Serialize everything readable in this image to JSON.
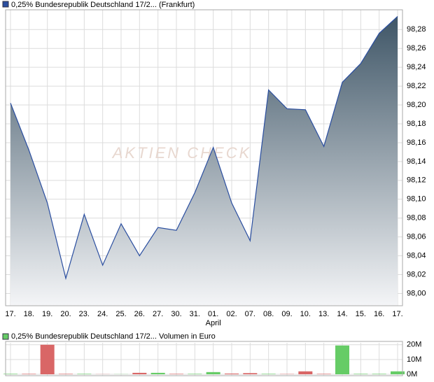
{
  "chart_data": [
    {
      "type": "area",
      "watermark": "AKTIEN CHECK",
      "month_label": "April",
      "categories": [
        "17.",
        "18.",
        "19.",
        "20.",
        "23.",
        "24.",
        "25.",
        "26.",
        "27.",
        "30.",
        "31.",
        "01.",
        "02.",
        "07.",
        "08.",
        "09.",
        "10.",
        "13.",
        "14.",
        "15.",
        "16.",
        "17."
      ],
      "series": [
        {
          "name": "0,25% Bundesrepublik Deutschland 17/2... (Frankfurt)",
          "color": "#2a4ea0",
          "values": [
            98.202,
            98.152,
            98.096,
            98.016,
            98.084,
            98.03,
            98.074,
            98.04,
            98.07,
            98.067,
            98.107,
            98.155,
            98.096,
            98.056,
            98.216,
            98.196,
            98.195,
            98.156,
            98.224,
            98.244,
            98.276,
            98.294
          ]
        }
      ],
      "ylim": [
        97.987,
        98.301
      ],
      "yticks": [
        {
          "value": 98.0,
          "label": "98,00"
        },
        {
          "value": 98.02,
          "label": "98,02"
        },
        {
          "value": 98.04,
          "label": "98,04"
        },
        {
          "value": 98.06,
          "label": "98,06"
        },
        {
          "value": 98.08,
          "label": "98,08"
        },
        {
          "value": 98.1,
          "label": "98,10"
        },
        {
          "value": 98.12,
          "label": "98,12"
        },
        {
          "value": 98.14,
          "label": "98,14"
        },
        {
          "value": 98.16,
          "label": "98,16"
        },
        {
          "value": 98.18,
          "label": "98,18"
        },
        {
          "value": 98.2,
          "label": "98,20"
        },
        {
          "value": 98.22,
          "label": "98,22"
        },
        {
          "value": 98.24,
          "label": "98,24"
        },
        {
          "value": 98.26,
          "label": "98,26"
        },
        {
          "value": 98.28,
          "label": "98,28"
        }
      ],
      "grid": true
    },
    {
      "type": "bar",
      "series": [
        {
          "name": "0,25% Bundesrepublik Deutschland 17/2... Volumen in Euro",
          "color": "#66cc66",
          "values": [
            0.3,
            0.3,
            20,
            0.3,
            0.3,
            0.1,
            0.1,
            1,
            1,
            0.3,
            0.3,
            1.5,
            0.5,
            0.8,
            0.3,
            0.2,
            2,
            0.3,
            19.5,
            0.3,
            0.3,
            2
          ],
          "colors": [
            "#66cc66",
            "#d96666",
            "#d96666",
            "#d96666",
            "#66cc66",
            "#d96666",
            "#66cc66",
            "#d96666",
            "#66cc66",
            "#d96666",
            "#66cc66",
            "#66cc66",
            "#d96666",
            "#d96666",
            "#66cc66",
            "#d96666",
            "#d96666",
            "#d96666",
            "#66cc66",
            "#66cc66",
            "#66cc66",
            "#66cc66"
          ]
        }
      ],
      "ylim": [
        0,
        21.3
      ],
      "yticks": [
        {
          "value": 0,
          "label": "0M"
        },
        {
          "value": 10,
          "label": "10M"
        },
        {
          "value": 20,
          "label": "20M"
        }
      ],
      "grid": true
    }
  ]
}
